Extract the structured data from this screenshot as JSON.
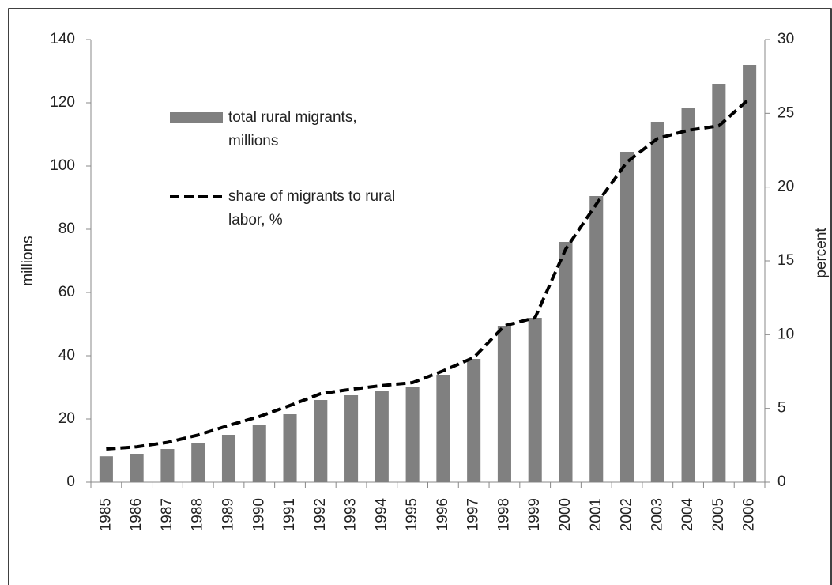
{
  "chart_data": {
    "type": "bar-line",
    "categories": [
      "1985",
      "1986",
      "1987",
      "1988",
      "1989",
      "1990",
      "1991",
      "1992",
      "1993",
      "1994",
      "1995",
      "1996",
      "1997",
      "1998",
      "1999",
      "2000",
      "2001",
      "2002",
      "2003",
      "2004",
      "2005",
      "2006"
    ],
    "series": [
      {
        "name": "total rural migrants, millions",
        "color": "#808080",
        "type": "bar",
        "values": [
          8.2,
          9,
          10.5,
          12.5,
          15,
          18,
          21.5,
          26,
          27.5,
          29,
          30,
          34,
          39,
          49.5,
          52,
          76,
          90.5,
          104.5,
          114,
          118.5,
          126,
          132
        ]
      },
      {
        "name": "share of migrants to rural labor, %",
        "color": "#000000",
        "type": "line",
        "axis": "y2",
        "values": [
          2.25,
          2.4,
          2.7,
          3.2,
          3.85,
          4.45,
          5.2,
          6.0,
          6.3,
          6.55,
          6.75,
          7.55,
          8.45,
          10.6,
          11.15,
          15.8,
          18.85,
          21.7,
          23.3,
          23.85,
          24.15,
          26.0
        ]
      }
    ],
    "y_label": "millions",
    "y2_label": "percent",
    "ylim": [
      0,
      140
    ],
    "yticks": [
      0,
      20,
      40,
      60,
      80,
      100,
      120,
      140
    ],
    "y2lim": [
      0,
      30
    ],
    "y2ticks": [
      0,
      5,
      10,
      15,
      20,
      25,
      30
    ]
  }
}
